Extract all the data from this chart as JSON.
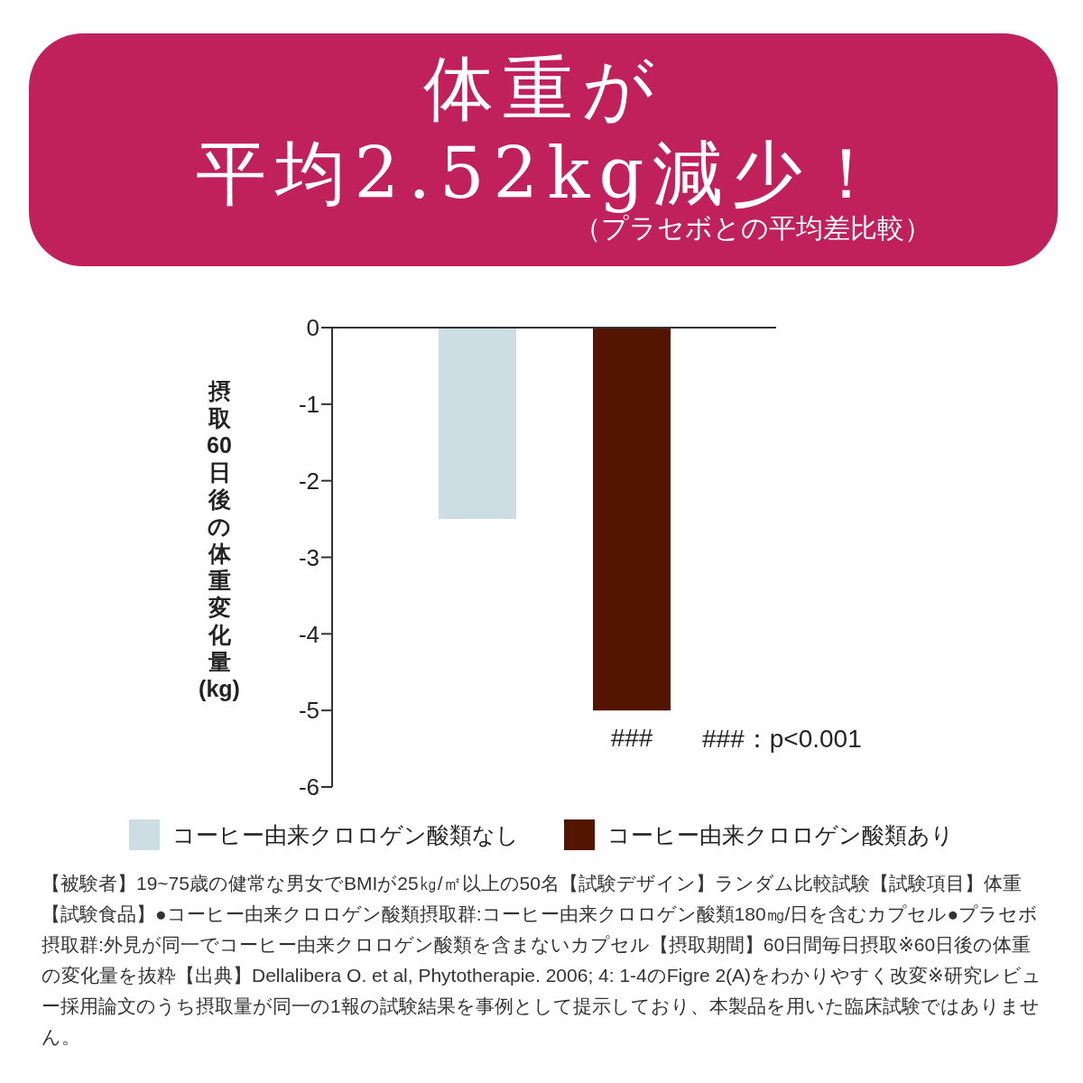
{
  "chart_data": {
    "type": "bar",
    "title": "体重が平均2.52kg減少！",
    "subtitle": "（プラセボとの平均差比較）",
    "ylabel": "摂取60日後の体重変化量(kg)",
    "categories": [
      null
    ],
    "series": [
      {
        "name": "コーヒー由来クロロゲン酸類なし",
        "color": "#cddde4",
        "values": [
          -2.5
        ]
      },
      {
        "name": "コーヒー由来クロロゲン酸類あり",
        "color": "#541500",
        "values": [
          -5.0
        ]
      }
    ],
    "ylim": [
      -6,
      0
    ],
    "yticks": [
      0,
      -1,
      -2,
      -3,
      -4,
      -5,
      -6
    ],
    "grid": false,
    "legend": "bottom",
    "annotations": [
      {
        "text": "###",
        "y": -5.0
      },
      "###：p<0.001",
      "【被験者】19~75歳の健常な男女でBMIが25㎏/㎡以上の50名【試験デザイン】ランダム比較試験【試験項目】体重【試験食品】●コーヒー由来クロロゲン酸類摂取群:コーヒー由来クロロゲン酸類180㎎/日を含むカプセル●プラセボ摂取群:外見が同一でコーヒー由来クロロゲン酸類を含まないカプセル【摂取期間】60日間毎日摂取※60日後の体重の変化量を抜粋【出典】Dellalibera O. et al, Phytotherapie. 2006; 4: 1-4のFigre 2(A)をわかりやすく改変※研究レビュー採用論文のうち摂取量が同一の1報の試験結果を事例として提示しており、本製品を用いた臨床試験ではありません。"
    ]
  }
}
